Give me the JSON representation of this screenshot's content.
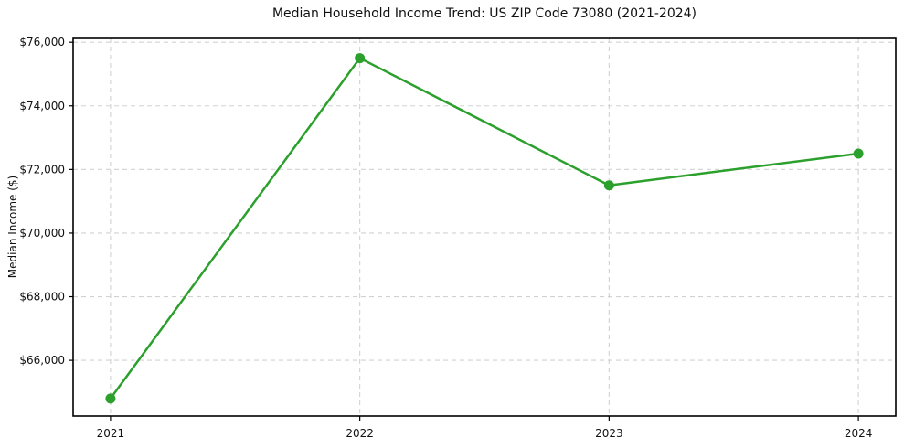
{
  "chart_data": {
    "type": "line",
    "title": "Median Household Income Trend: US ZIP Code 73080 (2021-2024)",
    "xlabel": "",
    "ylabel": "Median Income ($)",
    "x": [
      2021,
      2022,
      2023,
      2024
    ],
    "series": [
      {
        "name": "Median Household Income",
        "values": [
          64800,
          75500,
          71500,
          72500
        ]
      }
    ],
    "xtick_labels": [
      "2021",
      "2022",
      "2023",
      "2024"
    ],
    "yticks": [
      66000,
      68000,
      70000,
      72000,
      74000,
      76000
    ],
    "ytick_labels": [
      "$66,000",
      "$68,000",
      "$70,000",
      "$72,000",
      "$74,000",
      "$76,000"
    ],
    "xlim": [
      2020.85,
      2024.15
    ],
    "ylim": [
      64250,
      76120
    ],
    "grid": true,
    "grid_style": "dashed",
    "legend_position": "none",
    "colors": {
      "line": "#2ca02c",
      "marker": "#2ca02c",
      "grid": "#d2d2d2",
      "axis": "#000000",
      "text": "#111111",
      "background": "#ffffff"
    }
  }
}
